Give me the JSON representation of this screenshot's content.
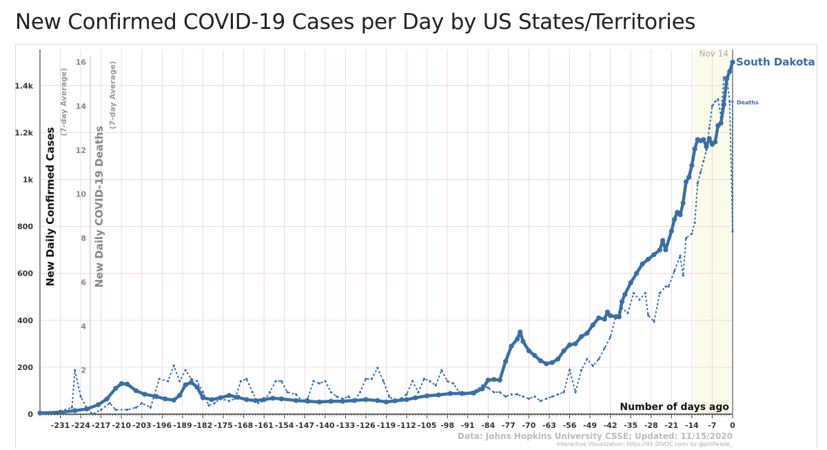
{
  "title": "New Confirmed COVID-19 Cases per Day by US States/Territories",
  "colors": {
    "series": "#3a6ea5",
    "grid": "#f0d6e2",
    "highlight": "#fbfbea"
  },
  "chart_data": {
    "type": "line",
    "xlabel": "Number of days ago",
    "ylabel": "New Daily Confirmed Cases",
    "ylabel_sub": "(7-day Average)",
    "y2label": "New Daily COVID-19 Deaths",
    "y2label_sub": "(7-day Average)",
    "xlim": [
      -238,
      0
    ],
    "ylim": [
      0,
      1530
    ],
    "y2lim": [
      0,
      16
    ],
    "x_ticks": [
      -231,
      -224,
      -217,
      -210,
      -203,
      -196,
      -189,
      -182,
      -175,
      -168,
      -161,
      -154,
      -147,
      -140,
      -133,
      -126,
      -119,
      -112,
      -105,
      -98,
      -91,
      -84,
      -77,
      -70,
      -63,
      -56,
      -49,
      -42,
      -35,
      -28,
      -21,
      -14,
      -7,
      0
    ],
    "y_ticks": [
      0,
      200,
      400,
      600,
      800,
      1000,
      1200,
      1400
    ],
    "y_tick_labels": [
      "0",
      "200",
      "400",
      "600",
      "800",
      "1k",
      "1.2k",
      "1.4k"
    ],
    "y2_ticks": [
      2,
      4,
      6,
      8,
      10,
      12,
      14,
      16
    ],
    "y2_tick_labels": [
      "2",
      "4",
      "6",
      "8",
      "10",
      "12",
      "14",
      "16"
    ],
    "highlight_range": [
      -13,
      -1
    ],
    "date_marker": {
      "x": 0,
      "label": "Nov 14"
    },
    "series": [
      {
        "name": "South Dakota",
        "axis": "left",
        "style": "solid",
        "points": [
          [
            -238,
            5
          ],
          [
            -231,
            8
          ],
          [
            -226,
            15
          ],
          [
            -222,
            22
          ],
          [
            -218,
            40
          ],
          [
            -215,
            65
          ],
          [
            -212,
            110
          ],
          [
            -210,
            130
          ],
          [
            -208,
            128
          ],
          [
            -205,
            100
          ],
          [
            -202,
            85
          ],
          [
            -198,
            75
          ],
          [
            -195,
            65
          ],
          [
            -192,
            60
          ],
          [
            -190,
            80
          ],
          [
            -188,
            125
          ],
          [
            -186,
            135
          ],
          [
            -184,
            115
          ],
          [
            -182,
            70
          ],
          [
            -179,
            62
          ],
          [
            -176,
            70
          ],
          [
            -173,
            80
          ],
          [
            -170,
            72
          ],
          [
            -167,
            62
          ],
          [
            -164,
            58
          ],
          [
            -161,
            62
          ],
          [
            -158,
            68
          ],
          [
            -155,
            65
          ],
          [
            -150,
            58
          ],
          [
            -146,
            55
          ],
          [
            -142,
            52
          ],
          [
            -138,
            55
          ],
          [
            -134,
            55
          ],
          [
            -130,
            58
          ],
          [
            -126,
            62
          ],
          [
            -122,
            58
          ],
          [
            -119,
            52
          ],
          [
            -116,
            57
          ],
          [
            -112,
            62
          ],
          [
            -109,
            70
          ],
          [
            -105,
            78
          ],
          [
            -101,
            82
          ],
          [
            -97,
            88
          ],
          [
            -93,
            88
          ],
          [
            -89,
            90
          ],
          [
            -86,
            108
          ],
          [
            -84,
            145
          ],
          [
            -82,
            148
          ],
          [
            -80,
            145
          ],
          [
            -78,
            225
          ],
          [
            -76,
            290
          ],
          [
            -74,
            320
          ],
          [
            -73,
            350
          ],
          [
            -72,
            310
          ],
          [
            -70,
            270
          ],
          [
            -68,
            250
          ],
          [
            -66,
            228
          ],
          [
            -64,
            215
          ],
          [
            -62,
            220
          ],
          [
            -60,
            235
          ],
          [
            -58,
            270
          ],
          [
            -56,
            295
          ],
          [
            -54,
            300
          ],
          [
            -52,
            330
          ],
          [
            -50,
            345
          ],
          [
            -48,
            380
          ],
          [
            -46,
            410
          ],
          [
            -44,
            405
          ],
          [
            -43,
            435
          ],
          [
            -42,
            420
          ],
          [
            -40,
            415
          ],
          [
            -39,
            415
          ],
          [
            -38,
            480
          ],
          [
            -37,
            510
          ],
          [
            -35,
            560
          ],
          [
            -33,
            600
          ],
          [
            -31,
            640
          ],
          [
            -29,
            660
          ],
          [
            -27,
            680
          ],
          [
            -25,
            700
          ],
          [
            -24,
            740
          ],
          [
            -23,
            700
          ],
          [
            -21,
            780
          ],
          [
            -20,
            830
          ],
          [
            -19,
            860
          ],
          [
            -18,
            850
          ],
          [
            -17,
            900
          ],
          [
            -16,
            990
          ],
          [
            -15,
            1010
          ],
          [
            -14,
            1060
          ],
          [
            -13,
            1130
          ],
          [
            -12,
            1170
          ],
          [
            -11,
            1165
          ],
          [
            -10,
            1170
          ],
          [
            -9,
            1140
          ],
          [
            -8,
            1175
          ],
          [
            -7,
            1150
          ],
          [
            -6,
            1160
          ],
          [
            -5,
            1230
          ],
          [
            -4,
            1240
          ],
          [
            -3,
            1320
          ],
          [
            -2,
            1430
          ],
          [
            -1,
            1460
          ],
          [
            0,
            1500
          ]
        ]
      },
      {
        "name": "Deaths",
        "axis": "right",
        "style": "dashed",
        "points": [
          [
            -238,
            0
          ],
          [
            -232,
            0.1
          ],
          [
            -227,
            0.3
          ],
          [
            -226,
            2.0
          ],
          [
            -224,
            0.8
          ],
          [
            -222,
            0.3
          ],
          [
            -220,
            0
          ],
          [
            -217,
            0.2
          ],
          [
            -214,
            0.5
          ],
          [
            -212,
            0.2
          ],
          [
            -208,
            0.2
          ],
          [
            -205,
            0.3
          ],
          [
            -203,
            0.5
          ],
          [
            -200,
            0.3
          ],
          [
            -197,
            1.6
          ],
          [
            -194,
            1.5
          ],
          [
            -192,
            2.2
          ],
          [
            -190,
            1.5
          ],
          [
            -188,
            2.0
          ],
          [
            -186,
            1.6
          ],
          [
            -184,
            1.5
          ],
          [
            -182,
            1.0
          ],
          [
            -180,
            0.4
          ],
          [
            -178,
            0.5
          ],
          [
            -176,
            0.7
          ],
          [
            -173,
            0.6
          ],
          [
            -171,
            0.7
          ],
          [
            -169,
            1.5
          ],
          [
            -167,
            1.6
          ],
          [
            -165,
            1.0
          ],
          [
            -163,
            0.5
          ],
          [
            -161,
            0.6
          ],
          [
            -159,
            1.0
          ],
          [
            -157,
            1.5
          ],
          [
            -155,
            1.5
          ],
          [
            -153,
            1.0
          ],
          [
            -150,
            0.9
          ],
          [
            -148,
            0.6
          ],
          [
            -146,
            0.7
          ],
          [
            -144,
            1.5
          ],
          [
            -142,
            1.4
          ],
          [
            -140,
            1.5
          ],
          [
            -138,
            1.0
          ],
          [
            -136,
            0.8
          ],
          [
            -134,
            0.7
          ],
          [
            -132,
            0.8
          ],
          [
            -130,
            0.6
          ],
          [
            -128,
            1.0
          ],
          [
            -126,
            1.6
          ],
          [
            -124,
            1.6
          ],
          [
            -122,
            2.1
          ],
          [
            -120,
            1.5
          ],
          [
            -118,
            0.8
          ],
          [
            -116,
            0.6
          ],
          [
            -114,
            0.7
          ],
          [
            -112,
            0.9
          ],
          [
            -110,
            1.5
          ],
          [
            -108,
            1.0
          ],
          [
            -106,
            1.6
          ],
          [
            -104,
            1.5
          ],
          [
            -102,
            1.3
          ],
          [
            -100,
            2.0
          ],
          [
            -98,
            1.5
          ],
          [
            -96,
            1.4
          ],
          [
            -94,
            1.0
          ],
          [
            -92,
            0.9
          ],
          [
            -90,
            1.0
          ],
          [
            -88,
            1.1
          ],
          [
            -86,
            1.3
          ],
          [
            -84,
            1.2
          ],
          [
            -82,
            1.0
          ],
          [
            -80,
            1.0
          ],
          [
            -78,
            0.8
          ],
          [
            -76,
            0.9
          ],
          [
            -74,
            0.9
          ],
          [
            -72,
            0.8
          ],
          [
            -70,
            0.7
          ],
          [
            -68,
            0.8
          ],
          [
            -66,
            0.6
          ],
          [
            -64,
            0.7
          ],
          [
            -62,
            0.8
          ],
          [
            -60,
            0.9
          ],
          [
            -58,
            1.0
          ],
          [
            -56,
            2.0
          ],
          [
            -54,
            1.0
          ],
          [
            -52,
            2.0
          ],
          [
            -50,
            2.5
          ],
          [
            -48,
            2.2
          ],
          [
            -46,
            2.5
          ],
          [
            -44,
            3.0
          ],
          [
            -42,
            3.5
          ],
          [
            -40,
            4.5
          ],
          [
            -38,
            4.8
          ],
          [
            -36,
            4.6
          ],
          [
            -34,
            5.5
          ],
          [
            -32,
            5.2
          ],
          [
            -30,
            5.5
          ],
          [
            -29,
            4.5
          ],
          [
            -27,
            4.2
          ],
          [
            -25,
            5.5
          ],
          [
            -23,
            5.8
          ],
          [
            -22,
            5.8
          ],
          [
            -20,
            6.5
          ],
          [
            -18,
            7.2
          ],
          [
            -17,
            6.3
          ],
          [
            -16,
            8.0
          ],
          [
            -14,
            8.2
          ],
          [
            -13,
            8.7
          ],
          [
            -12,
            10.5
          ],
          [
            -11,
            11.0
          ],
          [
            -10,
            11.5
          ],
          [
            -9,
            12.0
          ],
          [
            -8,
            13.0
          ],
          [
            -7,
            14.0
          ],
          [
            -6,
            14.2
          ],
          [
            -5,
            14.3
          ],
          [
            -4,
            13.5
          ],
          [
            -3,
            15.3
          ],
          [
            -2,
            15.3
          ],
          [
            -1,
            14.2
          ],
          [
            0,
            8.3
          ],
          [
            0,
            14.2
          ]
        ]
      }
    ],
    "annotations": [
      "Nov 14",
      "Number of days ago"
    ]
  },
  "source": {
    "line1": "Data: Johns Hopkins University CSSE; Updated: 11/15/2020",
    "line2": "Interactive Visualization: https://91-DIVOC.com/ by @profwade_"
  }
}
